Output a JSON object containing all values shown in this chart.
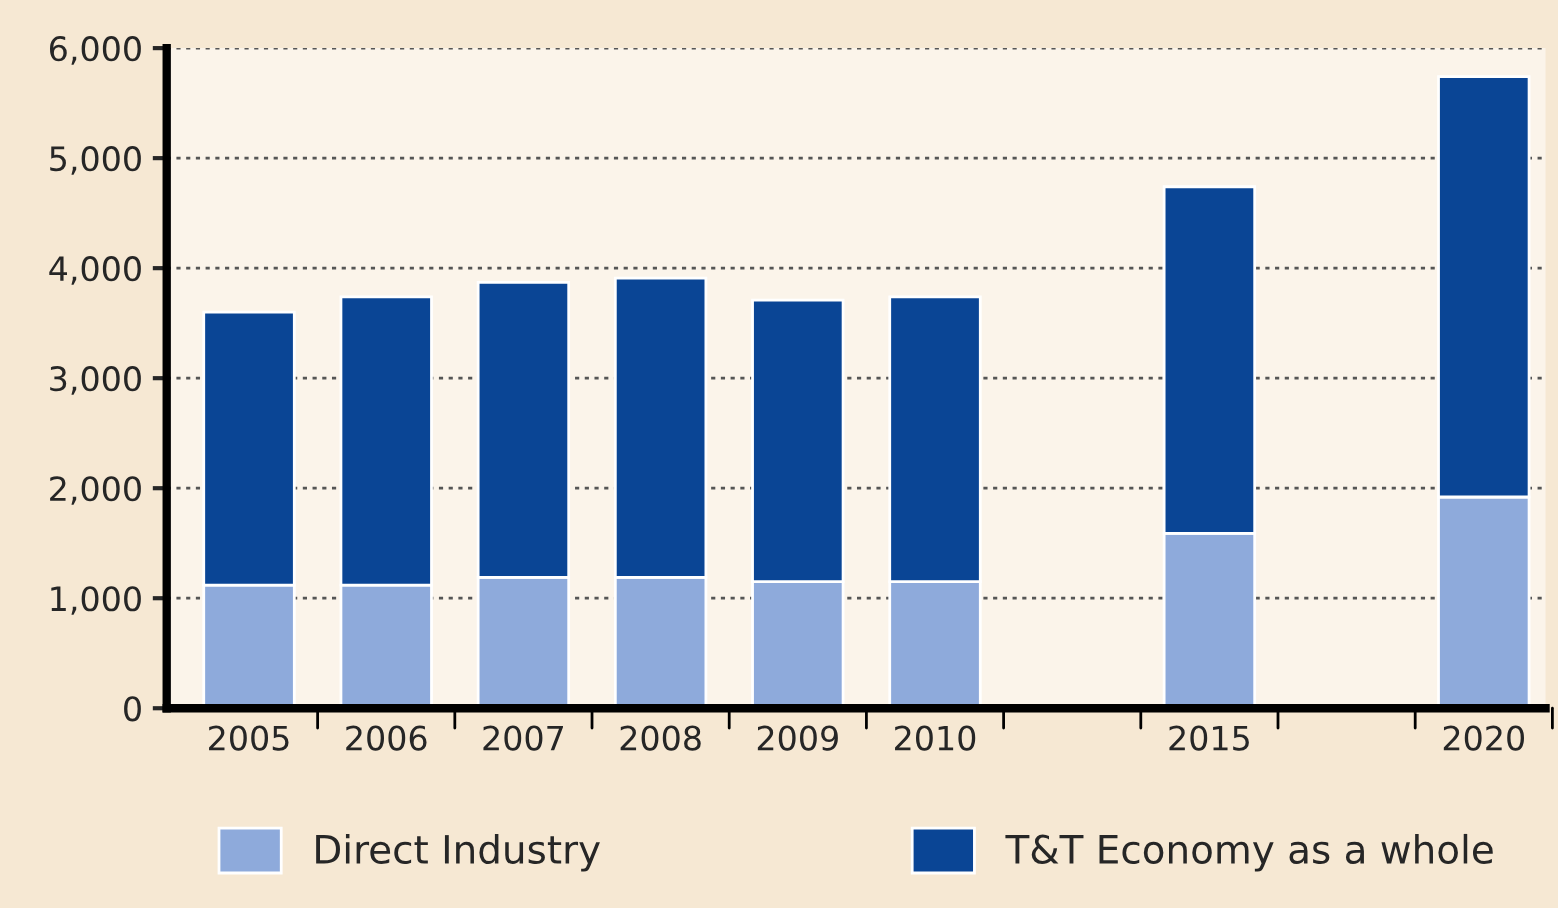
{
  "chart_data": {
    "type": "bar",
    "stacked": true,
    "categories": [
      "2005",
      "2006",
      "2007",
      "2008",
      "2009",
      "2010",
      null,
      "2015",
      null,
      "2020"
    ],
    "series": [
      {
        "name": "Direct Industry",
        "color": "#8eaadb",
        "values": [
          1120,
          1120,
          1190,
          1190,
          1150,
          1150,
          null,
          1590,
          null,
          1920
        ]
      },
      {
        "name": "T&T Economy as a whole",
        "color": "#0a4595",
        "values": [
          2480,
          2620,
          2680,
          2720,
          2560,
          2590,
          null,
          3150,
          null,
          3820
        ]
      }
    ],
    "ylim": [
      0,
      6000
    ],
    "yticks": [
      0,
      {
        "value": 1000,
        "label": "1,000"
      },
      {
        "value": 2000,
        "label": "2,000"
      },
      {
        "value": 3000,
        "label": "3,000"
      },
      {
        "value": 4000,
        "label": "4,000"
      },
      {
        "value": 5000,
        "label": "5,000"
      },
      {
        "value": 6000,
        "label": "6,000"
      }
    ],
    "grid": "y",
    "legend": "bottom"
  }
}
